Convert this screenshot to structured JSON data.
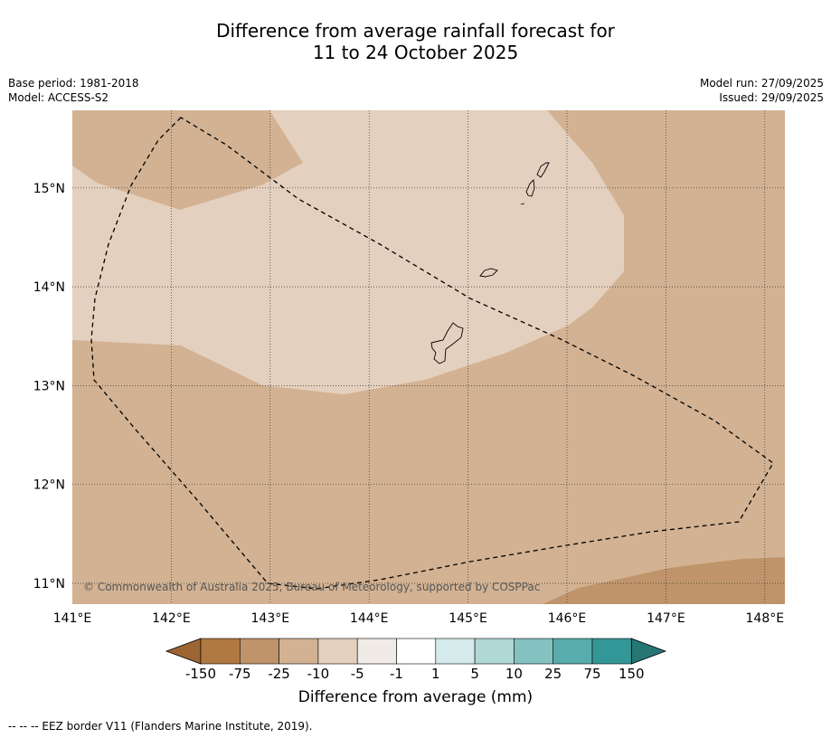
{
  "title": {
    "line1": "Difference from average rainfall forecast for",
    "line2": "11 to 24 October 2025"
  },
  "meta": {
    "base_period": "Base period: 1981-2018",
    "model": "Model: ACCESS-S2",
    "model_run": "Model run: 27/09/2025",
    "issued": "Issued: 29/09/2025"
  },
  "map": {
    "lon_labels": [
      "141°E",
      "142°E",
      "143°E",
      "144°E",
      "145°E",
      "146°E",
      "147°E",
      "148°E"
    ],
    "lat_labels": [
      "15°N",
      "14°N",
      "13°N",
      "12°N",
      "11°N"
    ],
    "extent": {
      "lon": [
        141,
        148.2
      ],
      "lat": [
        10.8,
        15.8
      ]
    },
    "copyright": "© Commonwealth of Australia 2025, Bureau of Meteorology, supported by COSPPac",
    "colors": {
      "range_-25_-10": "#d2b293",
      "range_-10_-5": "#e4d0be",
      "range_-75_-25": "#bf946a"
    }
  },
  "colorbar": {
    "ticks": [
      "-150",
      "-75",
      "-25",
      "-10",
      "-5",
      "-1",
      "1",
      "5",
      "10",
      "25",
      "75",
      "150"
    ],
    "colors": [
      "#9d6434",
      "#b07842",
      "#bf946a",
      "#d2b293",
      "#e4d0be",
      "#f0ebe6",
      "#ffffff",
      "#d5eaea",
      "#b0d8d6",
      "#84c2c2",
      "#58acac",
      "#349797",
      "#257674"
    ],
    "title": "Difference from average (mm)"
  },
  "footnote": "-- -- -- EEZ border V11 (Flanders Marine Institute, 2019)."
}
